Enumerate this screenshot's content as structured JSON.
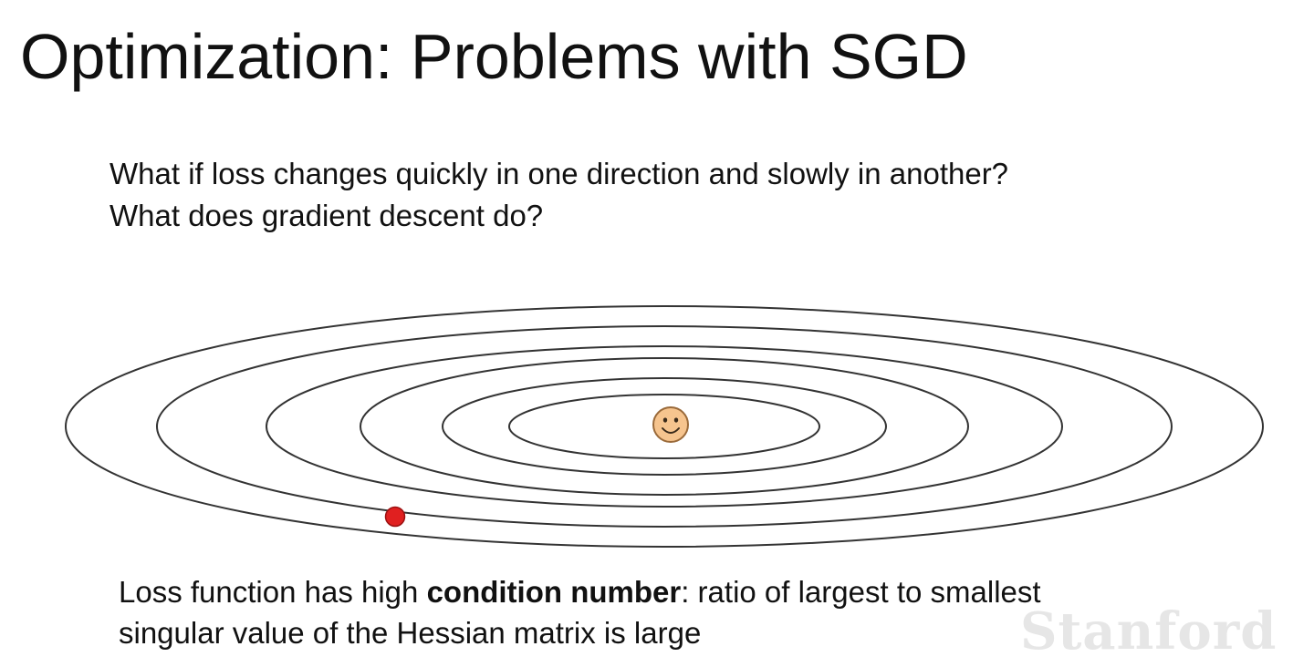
{
  "slide": {
    "title": "Optimization: Problems with SGD",
    "questions": [
      "What if loss changes quickly in one direction and slowly in another?",
      "What does gradient descent do?"
    ],
    "caption": {
      "line1_pre": "Loss function has high ",
      "line1_bold": "condition number",
      "line1_post": ": ratio of largest to smallest",
      "line2": "singular value of the Hessian matrix is large"
    },
    "watermark": "Stanford"
  },
  "diagram": {
    "contour_count": 6,
    "minimum_marker": "smiley-face-icon",
    "current_point_marker": "red-dot",
    "colors": {
      "contour_line": "#333333",
      "smiley_fill": "#f6c48e",
      "smiley_stroke": "#9a6a3a",
      "red_point": "#e02020"
    }
  }
}
